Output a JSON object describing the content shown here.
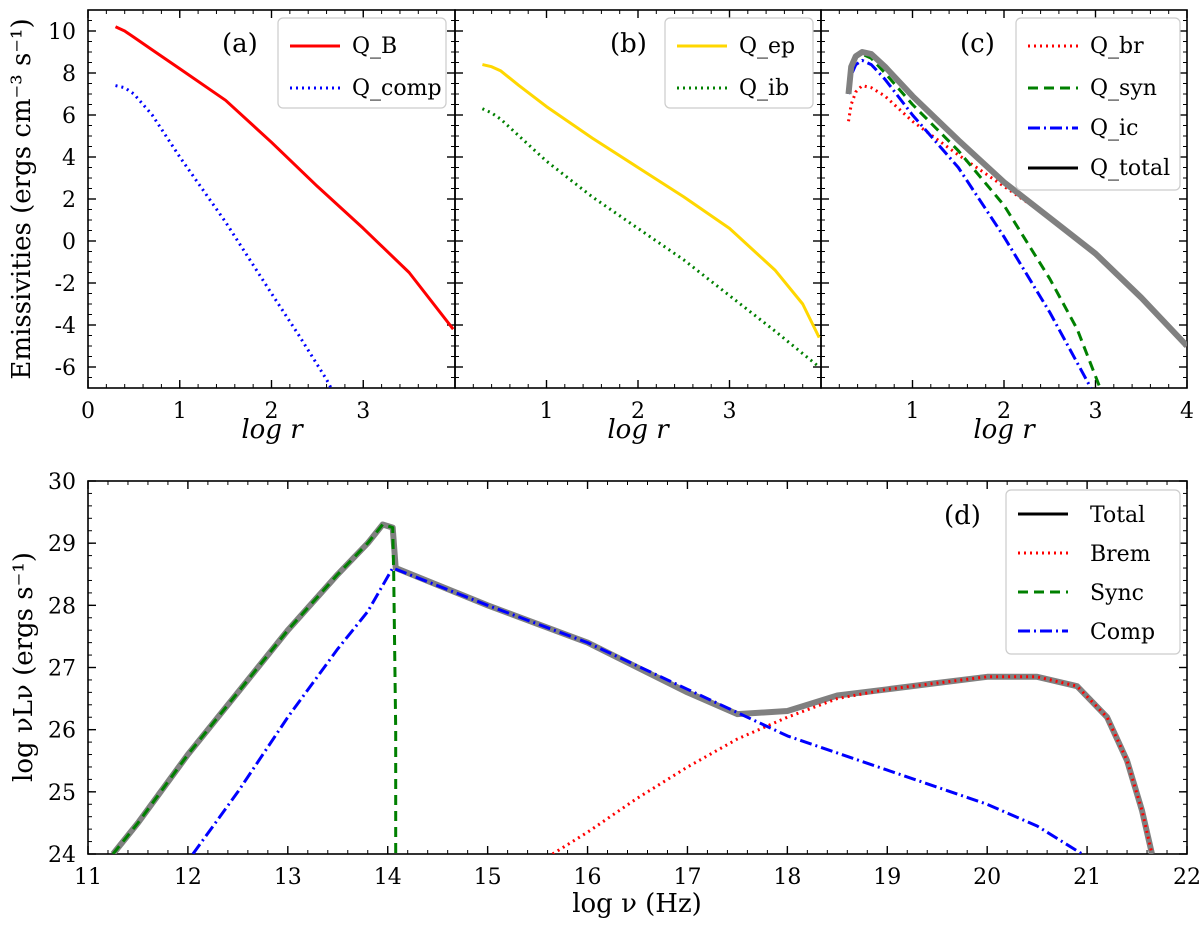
{
  "panel_a": {
    "label": "(a)",
    "xlabel": "log r",
    "ylabel": "Emissivities (ergs cm⁻³ s⁻¹)",
    "legend": [
      "Q_B",
      "Q_comp"
    ]
  },
  "panel_b": {
    "label": "(b)",
    "xlabel": "log r",
    "legend": [
      "Q_ep",
      "Q_ib"
    ]
  },
  "panel_c": {
    "label": "(c)",
    "xlabel": "log r",
    "legend": [
      "Q_br",
      "Q_syn",
      "Q_ic",
      "Q_total"
    ]
  },
  "panel_d": {
    "label": "(d)",
    "xlabel": "log ν (Hz)",
    "ylabel": "log νLν (ergs s⁻¹)",
    "legend": [
      "Total",
      "Brem",
      "Sync",
      "Comp"
    ]
  },
  "chart_data": [
    {
      "type": "line",
      "panel": "(a)",
      "xlabel": "log r",
      "ylabel": "Emissivities (ergs cm^-3 s^-1)",
      "xlim": [
        0,
        4
      ],
      "ylim": [
        -7,
        11
      ],
      "xticks": [
        0,
        1,
        2,
        3
      ],
      "yticks": [
        10,
        8,
        6,
        4,
        2,
        0,
        -2,
        -4,
        -6
      ],
      "legend_position": "top-right",
      "series": [
        {
          "name": "Q_B",
          "color": "#ff0000",
          "style": "solid",
          "x": [
            0.3,
            0.4,
            0.5,
            0.7,
            1.0,
            1.5,
            2.0,
            2.5,
            3.0,
            3.5,
            3.98
          ],
          "y": [
            10.2,
            10.0,
            9.7,
            9.1,
            8.2,
            6.7,
            4.7,
            2.6,
            0.6,
            -1.5,
            -4.2
          ]
        },
        {
          "name": "Q_comp",
          "color": "#0000ff",
          "style": "dotted",
          "x": [
            0.3,
            0.4,
            0.5,
            0.7,
            1.0,
            1.5,
            2.0,
            2.3,
            2.6,
            2.65
          ],
          "y": [
            7.4,
            7.3,
            7.0,
            6.0,
            4.0,
            0.9,
            -2.5,
            -4.5,
            -6.6,
            -7.0
          ]
        }
      ]
    },
    {
      "type": "line",
      "panel": "(b)",
      "xlabel": "log r",
      "xlim": [
        0,
        4
      ],
      "ylim": [
        -7,
        11
      ],
      "xticks": [
        1,
        2,
        3
      ],
      "legend_position": "top-right",
      "series": [
        {
          "name": "Q_ep",
          "color": "#ffd700",
          "style": "solid",
          "x": [
            0.3,
            0.4,
            0.5,
            0.7,
            1.0,
            1.5,
            2.0,
            2.5,
            3.0,
            3.5,
            3.8,
            3.98
          ],
          "y": [
            8.4,
            8.3,
            8.1,
            7.4,
            6.4,
            4.9,
            3.5,
            2.1,
            0.6,
            -1.4,
            -3.0,
            -4.6
          ]
        },
        {
          "name": "Q_ib",
          "color": "#008000",
          "style": "dotted",
          "x": [
            0.3,
            0.4,
            0.5,
            0.7,
            1.0,
            1.5,
            2.0,
            2.5,
            3.0,
            3.5,
            3.98
          ],
          "y": [
            6.3,
            6.1,
            5.8,
            5.0,
            3.8,
            2.1,
            0.6,
            -0.9,
            -2.6,
            -4.3,
            -6.0
          ]
        }
      ]
    },
    {
      "type": "line",
      "panel": "(c)",
      "xlabel": "log r",
      "xlim": [
        0,
        4
      ],
      "ylim": [
        -7,
        11
      ],
      "xticks": [
        1,
        2,
        3,
        4
      ],
      "legend_position": "top-right",
      "series": [
        {
          "name": "Q_br",
          "color": "#ff0000",
          "style": "dotted",
          "x": [
            0.3,
            0.33,
            0.38,
            0.45,
            0.55,
            0.7,
            1.0,
            1.5,
            2.0,
            2.5,
            3.0,
            3.5,
            4.0
          ],
          "y": [
            5.7,
            6.5,
            7.1,
            7.4,
            7.3,
            6.9,
            5.7,
            4.1,
            2.6,
            1.1,
            -0.6,
            -2.7,
            -5.0
          ]
        },
        {
          "name": "Q_syn",
          "color": "#008000",
          "style": "dashed",
          "x": [
            0.3,
            0.33,
            0.38,
            0.45,
            0.55,
            0.7,
            1.0,
            1.5,
            2.0,
            2.5,
            2.8,
            3.05
          ],
          "y": [
            7.0,
            8.2,
            8.8,
            8.9,
            8.7,
            8.0,
            6.5,
            4.3,
            1.7,
            -1.8,
            -4.2,
            -7.0
          ]
        },
        {
          "name": "Q_ic",
          "color": "#0000ff",
          "style": "dashdot",
          "x": [
            0.3,
            0.33,
            0.38,
            0.45,
            0.55,
            0.7,
            1.0,
            1.5,
            2.0,
            2.5,
            2.8,
            2.95
          ],
          "y": [
            7.0,
            7.9,
            8.4,
            8.6,
            8.4,
            7.7,
            6.0,
            3.5,
            0.2,
            -3.4,
            -5.8,
            -7.0
          ]
        },
        {
          "name": "Q_total",
          "color": "#000000",
          "style": "solid",
          "x": [
            0.3,
            0.33,
            0.38,
            0.45,
            0.55,
            0.7,
            1.0,
            1.5,
            2.0,
            2.5,
            3.0,
            3.5,
            4.0
          ],
          "y": [
            7.0,
            8.3,
            8.8,
            9.0,
            8.9,
            8.3,
            6.9,
            4.8,
            2.8,
            1.1,
            -0.6,
            -2.7,
            -5.0
          ]
        }
      ]
    },
    {
      "type": "line",
      "panel": "(d)",
      "xlabel": "log ν (Hz)",
      "ylabel": "log νLν (ergs s^-1)",
      "xlim": [
        11,
        22
      ],
      "ylim": [
        24,
        30
      ],
      "xticks": [
        11,
        12,
        13,
        14,
        15,
        16,
        17,
        18,
        19,
        20,
        21,
        22
      ],
      "yticks": [
        30,
        29,
        28,
        27,
        26,
        25,
        24
      ],
      "legend_position": "top-right",
      "series": [
        {
          "name": "Total",
          "color": "#000000",
          "style": "solid",
          "x": [
            11.25,
            11.5,
            12.0,
            12.5,
            13.0,
            13.5,
            13.8,
            13.95,
            14.05,
            14.08,
            15.0,
            16.0,
            17.0,
            17.5,
            18.0,
            18.5,
            19.0,
            19.5,
            20.0,
            20.5,
            20.9,
            21.2,
            21.4,
            21.55,
            21.65
          ],
          "y": [
            24.0,
            24.5,
            25.6,
            26.6,
            27.6,
            28.5,
            29.0,
            29.3,
            29.25,
            28.6,
            28.0,
            27.4,
            26.6,
            26.25,
            26.3,
            26.55,
            26.65,
            26.75,
            26.85,
            26.85,
            26.7,
            26.2,
            25.5,
            24.7,
            24.0
          ]
        },
        {
          "name": "Brem",
          "color": "#ff0000",
          "style": "dotted",
          "x": [
            15.65,
            16.0,
            16.5,
            17.0,
            17.5,
            18.0,
            18.5,
            19.0,
            19.5,
            20.0,
            20.5,
            20.9,
            21.2,
            21.4,
            21.55,
            21.65
          ],
          "y": [
            24.0,
            24.35,
            24.9,
            25.4,
            25.85,
            26.2,
            26.5,
            26.65,
            26.75,
            26.85,
            26.85,
            26.7,
            26.2,
            25.5,
            24.7,
            24.0
          ]
        },
        {
          "name": "Sync",
          "color": "#008000",
          "style": "dashed",
          "x": [
            11.25,
            11.5,
            12.0,
            12.5,
            13.0,
            13.5,
            13.8,
            13.95,
            14.05,
            14.06,
            14.08,
            14.08
          ],
          "y": [
            24.0,
            24.5,
            25.6,
            26.6,
            27.6,
            28.5,
            29.0,
            29.3,
            29.25,
            28.5,
            26.0,
            24.0
          ]
        },
        {
          "name": "Comp",
          "color": "#0000ff",
          "style": "dashdot",
          "x": [
            12.05,
            12.5,
            13.0,
            13.5,
            13.8,
            14.05,
            15.0,
            16.0,
            17.0,
            18.0,
            19.0,
            20.0,
            20.5,
            20.95
          ],
          "y": [
            24.0,
            25.0,
            26.2,
            27.3,
            27.9,
            28.6,
            28.0,
            27.4,
            26.65,
            25.9,
            25.35,
            24.8,
            24.45,
            24.0
          ]
        }
      ]
    }
  ]
}
